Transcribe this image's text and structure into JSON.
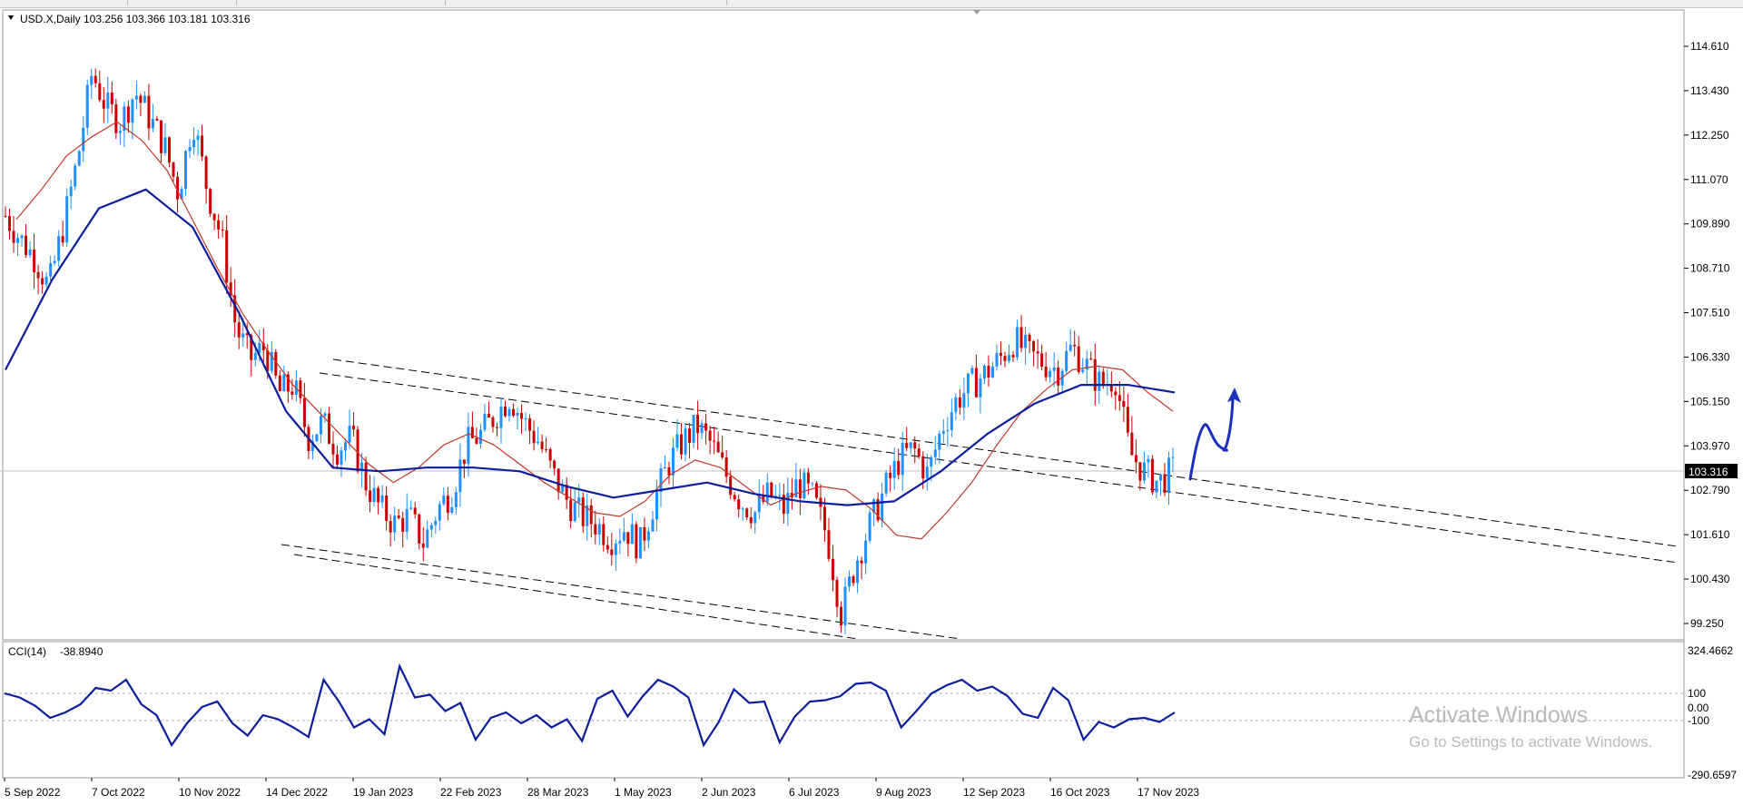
{
  "window": {
    "symbol_info": "USD.X,Daily",
    "ohlc": "103.256 103.366 103.181 103.316"
  },
  "main_chart": {
    "price_axis_labels": [
      "114.610",
      "113.430",
      "112.250",
      "111.070",
      "109.890",
      "108.710",
      "107.510",
      "106.330",
      "105.150",
      "103.970",
      "102.790",
      "101.610",
      "100.430",
      "99.250"
    ],
    "current_price": "103.316",
    "colors": {
      "bull": "#1e90ff",
      "bear": "#cc0000",
      "ma_fast": "#c0392b",
      "ma_slow": "#0b1e9e",
      "annotation_arrow": "#1a2fbf",
      "trend_channel": "#000000"
    }
  },
  "indicator": {
    "name": "CCI(14)",
    "value": "-38.8940",
    "axis_labels": [
      "324.4662",
      "100",
      "0.00",
      "-100",
      "-290.6597"
    ],
    "color": "#0b1e9e"
  },
  "time_axis_labels": [
    "5 Sep 2022",
    "7 Oct 2022",
    "10 Nov 2022",
    "14 Dec 2022",
    "19 Jan 2023",
    "22 Feb 2023",
    "28 Mar 2023",
    "1 May 2023",
    "2 Jun 2023",
    "6 Jul 2023",
    "9 Aug 2023",
    "12 Sep 2023",
    "16 Oct 2023",
    "17 Nov 2023"
  ],
  "watermark": {
    "title": "Activate Windows",
    "subtitle": "Go to Settings to activate Windows."
  },
  "chart_data": {
    "type": "candlestick",
    "title": "USD.X,Daily",
    "ylim": [
      98.7,
      115.9
    ],
    "x_labels": [
      "5 Sep 2022",
      "7 Oct 2022",
      "10 Nov 2022",
      "14 Dec 2022",
      "19 Jan 2023",
      "22 Feb 2023",
      "28 Mar 2023",
      "1 May 2023",
      "2 Jun 2023",
      "6 Jul 2023",
      "9 Aug 2023",
      "12 Sep 2023",
      "16 Oct 2023",
      "17 Nov 2023"
    ],
    "closes": [
      110.1,
      109.5,
      109.0,
      108.2,
      109.8,
      111.6,
      113.9,
      113.0,
      112.6,
      113.4,
      112.7,
      112.0,
      110.7,
      112.7,
      110.8,
      109.5,
      107.1,
      106.3,
      106.6,
      105.4,
      105.6,
      104.2,
      104.6,
      103.9,
      104.2,
      103.0,
      102.3,
      101.9,
      102.1,
      101.4,
      102.3,
      102.8,
      104.0,
      104.3,
      104.8,
      105.3,
      104.6,
      104.1,
      103.2,
      102.5,
      102.1,
      101.9,
      101.5,
      101.8,
      101.3,
      102.5,
      103.5,
      104.1,
      104.5,
      104.0,
      103.2,
      102.5,
      102.2,
      102.7,
      102.3,
      103.0,
      102.6,
      101.6,
      99.5,
      100.9,
      101.9,
      102.8,
      103.6,
      103.9,
      103.2,
      104.5,
      105.2,
      105.6,
      105.9,
      106.3,
      106.8,
      106.4,
      106.2,
      106.0,
      106.6,
      106.1,
      105.6,
      105.8,
      103.8,
      103.3,
      103.0,
      103.316
    ],
    "ma_fast": [
      110.0,
      110.8,
      111.7,
      112.2,
      112.6,
      112.1,
      111.3,
      110.0,
      108.7,
      107.5,
      106.5,
      105.6,
      104.9,
      104.2,
      103.5,
      103.0,
      103.4,
      104.0,
      104.3,
      104.0,
      103.5,
      103.0,
      102.6,
      102.2,
      102.1,
      102.5,
      103.2,
      103.6,
      103.4,
      102.9,
      102.4,
      102.7,
      102.9,
      102.8,
      102.3,
      101.6,
      101.5,
      102.2,
      103.0,
      104.0,
      104.9,
      105.5,
      106.0,
      106.1,
      106.0,
      105.4,
      104.9
    ],
    "ma_slow": [
      106.0,
      108.4,
      110.3,
      110.8,
      109.8,
      107.5,
      104.9,
      103.4,
      103.3,
      103.4,
      103.4,
      103.3,
      102.9,
      102.6,
      102.8,
      103.0,
      102.7,
      102.5,
      102.4,
      102.5,
      103.3,
      104.3,
      105.1,
      105.6,
      105.6,
      105.4
    ],
    "trend_channels": [
      {
        "name": "upper",
        "start": [
          "Dec 2022",
          106.3
        ],
        "end": [
          "Feb 2024",
          101.2
        ]
      },
      {
        "name": "lower",
        "start": [
          "Sep 2022",
          101.0
        ],
        "end": [
          "Jul 2023",
          98.7
        ]
      }
    ],
    "indicator": {
      "name": "CCI(14)",
      "last": -38.894,
      "levels": [
        100,
        0,
        -100
      ],
      "ylim": [
        -290.6597,
        324.4662
      ],
      "values": [
        100,
        70,
        10,
        -80,
        -40,
        20,
        140,
        120,
        200,
        20,
        -60,
        -280,
        -120,
        0,
        40,
        -120,
        -210,
        -60,
        -90,
        -150,
        -220,
        200,
        40,
        -150,
        -90,
        -200,
        300,
        70,
        90,
        -30,
        30,
        -240,
        -80,
        -40,
        -120,
        -60,
        -150,
        -90,
        -250,
        60,
        120,
        -70,
        80,
        200,
        150,
        70,
        -280,
        -110,
        130,
        30,
        40,
        -260,
        -70,
        40,
        50,
        80,
        170,
        180,
        120,
        -150,
        -30,
        100,
        160,
        200,
        120,
        150,
        80,
        -50,
        -80,
        140,
        50,
        -240,
        -110,
        -150,
        -90,
        -80,
        -110,
        -40
      ]
    }
  }
}
